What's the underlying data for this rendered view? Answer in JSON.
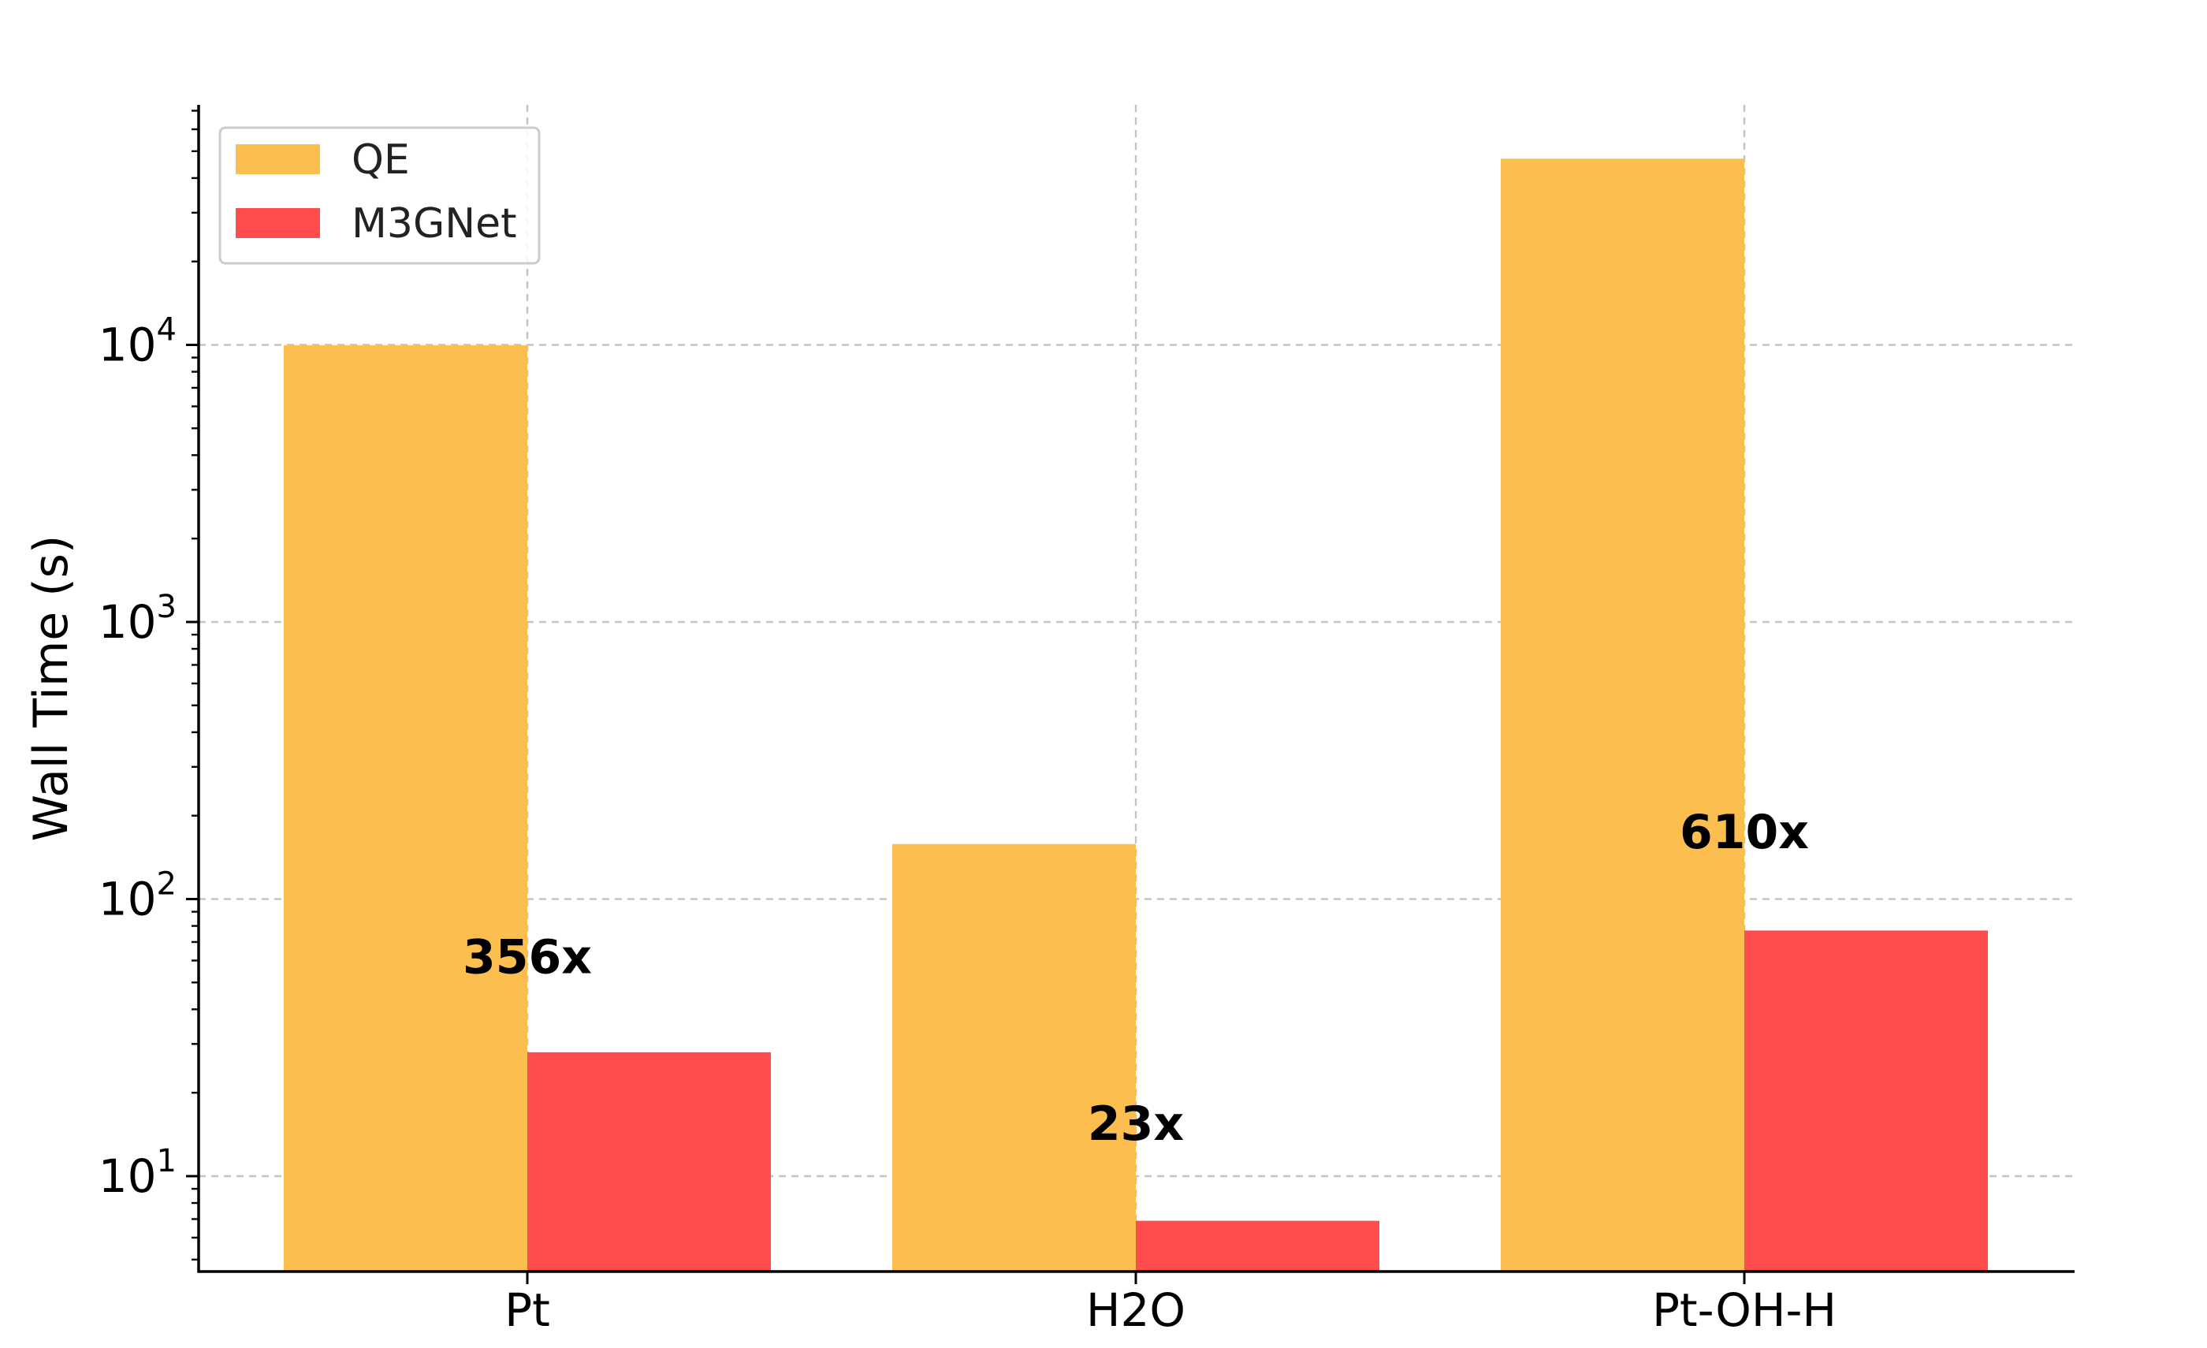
{
  "chart_data": {
    "type": "bar",
    "title": "",
    "xlabel": "",
    "ylabel": "Wall Time (s)",
    "yscale": "log",
    "ylim": [
      4.5,
      80000
    ],
    "yticks": [
      {
        "base": "10",
        "exp": "1",
        "value": 10
      },
      {
        "base": "10",
        "exp": "2",
        "value": 100
      },
      {
        "base": "10",
        "exp": "3",
        "value": 1000
      },
      {
        "base": "10",
        "exp": "4",
        "value": 10000
      }
    ],
    "categories": [
      "Pt",
      "H2O",
      "Pt-OH-H"
    ],
    "series": [
      {
        "name": "QE",
        "color": "#fcbe4e",
        "values": [
          9970,
          158,
          47000
        ]
      },
      {
        "name": "M3GNet",
        "color": "#ff4c4c",
        "values": [
          28,
          6.9,
          77
        ]
      }
    ],
    "annotations": [
      {
        "category": "Pt",
        "text": "356x",
        "y": 62
      },
      {
        "category": "H2O",
        "text": "23x",
        "y": 15.5
      },
      {
        "category": "Pt-OH-H",
        "text": "610x",
        "y": 175
      }
    ],
    "grid": true,
    "legend_position": "top-left"
  }
}
